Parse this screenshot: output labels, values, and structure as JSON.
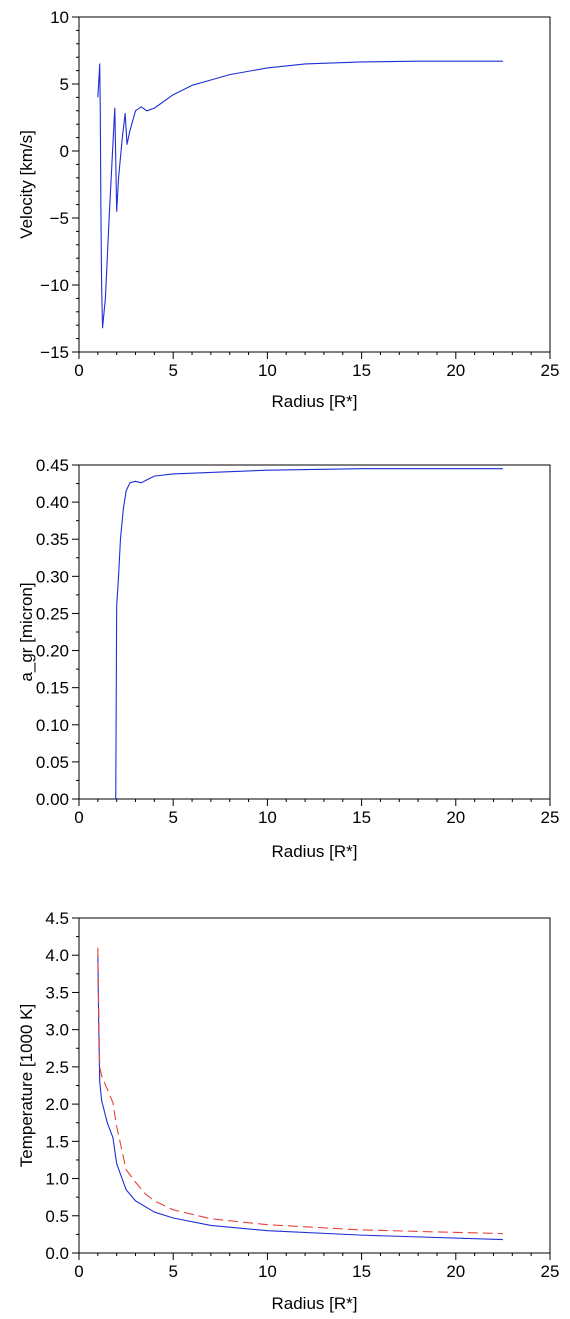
{
  "chart_data": [
    {
      "type": "line",
      "xlabel": "Radius [R*]",
      "ylabel": "Velocity [km/s]",
      "xlim": [
        0,
        25
      ],
      "ylim": [
        -15,
        10
      ],
      "xticks": [
        0,
        5,
        10,
        15,
        20,
        25
      ],
      "xtick_labels": [
        "0",
        "5",
        "10",
        "15",
        "20",
        "25"
      ],
      "yticks": [
        -15,
        -10,
        -5,
        0,
        5,
        10
      ],
      "ytick_labels": [
        "−15",
        "−10",
        "−5",
        "0",
        "5",
        "10"
      ],
      "y_minor_step": 1,
      "grid": false,
      "series": [
        {
          "color": "#1f2fd6",
          "dash": "solid",
          "points": [
            [
              1.0,
              4.0
            ],
            [
              1.05,
              5.2
            ],
            [
              1.1,
              6.5
            ],
            [
              1.13,
              3.0
            ],
            [
              1.16,
              -4.0
            ],
            [
              1.2,
              -10.0
            ],
            [
              1.25,
              -13.2
            ],
            [
              1.4,
              -11.0
            ],
            [
              1.6,
              -5.0
            ],
            [
              1.8,
              0.5
            ],
            [
              1.9,
              3.2
            ],
            [
              2.0,
              -4.5
            ],
            [
              2.1,
              -2.0
            ],
            [
              2.3,
              1.0
            ],
            [
              2.45,
              2.8
            ],
            [
              2.55,
              0.5
            ],
            [
              2.7,
              1.5
            ],
            [
              3.0,
              3.0
            ],
            [
              3.3,
              3.3
            ],
            [
              3.6,
              3.0
            ],
            [
              4.0,
              3.2
            ],
            [
              5.0,
              4.2
            ],
            [
              6.0,
              4.9
            ],
            [
              7.0,
              5.3
            ],
            [
              8.0,
              5.7
            ],
            [
              10.0,
              6.2
            ],
            [
              12.0,
              6.5
            ],
            [
              15.0,
              6.65
            ],
            [
              18.0,
              6.7
            ],
            [
              22.5,
              6.7
            ]
          ]
        }
      ]
    },
    {
      "type": "line",
      "xlabel": "Radius [R*]",
      "ylabel": "a_gr [micron]",
      "xlim": [
        0,
        25
      ],
      "ylim": [
        0,
        0.45
      ],
      "xticks": [
        0,
        5,
        10,
        15,
        20,
        25
      ],
      "xtick_labels": [
        "0",
        "5",
        "10",
        "15",
        "20",
        "25"
      ],
      "yticks": [
        0,
        0.05,
        0.1,
        0.15,
        0.2,
        0.25,
        0.3,
        0.35,
        0.4,
        0.45
      ],
      "ytick_labels": [
        "0.00",
        "0.05",
        "0.10",
        "0.15",
        "0.20",
        "0.25",
        "0.30",
        "0.35",
        "0.40",
        "0.45"
      ],
      "y_minor_step": 0.025,
      "grid": false,
      "series": [
        {
          "color": "#1f2fd6",
          "dash": "solid",
          "points": [
            [
              1.95,
              0.0
            ],
            [
              2.0,
              0.26
            ],
            [
              2.1,
              0.3
            ],
            [
              2.2,
              0.35
            ],
            [
              2.35,
              0.39
            ],
            [
              2.5,
              0.415
            ],
            [
              2.7,
              0.426
            ],
            [
              3.0,
              0.428
            ],
            [
              3.3,
              0.426
            ],
            [
              3.6,
              0.43
            ],
            [
              4.0,
              0.435
            ],
            [
              5.0,
              0.438
            ],
            [
              7.0,
              0.44
            ],
            [
              10.0,
              0.443
            ],
            [
              15.0,
              0.445
            ],
            [
              22.5,
              0.445
            ]
          ]
        }
      ]
    },
    {
      "type": "line",
      "xlabel": "Radius [R*]",
      "ylabel": "Temperature [1000 K]",
      "xlim": [
        0,
        25
      ],
      "ylim": [
        0,
        4.5
      ],
      "xticks": [
        0,
        5,
        10,
        15,
        20,
        25
      ],
      "xtick_labels": [
        "0",
        "5",
        "10",
        "15",
        "20",
        "25"
      ],
      "yticks": [
        0,
        0.5,
        1.0,
        1.5,
        2.0,
        2.5,
        3.0,
        3.5,
        4.0,
        4.5
      ],
      "ytick_labels": [
        "0.0",
        "0.5",
        "1.0",
        "1.5",
        "2.0",
        "2.5",
        "3.0",
        "3.5",
        "4.0",
        "4.5"
      ],
      "y_minor_step": 0.25,
      "grid": false,
      "series": [
        {
          "color": "#1f2fd6",
          "dash": "solid",
          "points": [
            [
              1.0,
              4.0
            ],
            [
              1.05,
              3.0
            ],
            [
              1.1,
              2.3
            ],
            [
              1.2,
              2.05
            ],
            [
              1.5,
              1.75
            ],
            [
              1.8,
              1.55
            ],
            [
              2.0,
              1.2
            ],
            [
              2.5,
              0.85
            ],
            [
              3.0,
              0.7
            ],
            [
              4.0,
              0.55
            ],
            [
              5.0,
              0.47
            ],
            [
              7.0,
              0.37
            ],
            [
              10.0,
              0.3
            ],
            [
              15.0,
              0.24
            ],
            [
              22.5,
              0.18
            ]
          ]
        },
        {
          "color": "#e8433a",
          "dash": "dashed",
          "points": [
            [
              1.0,
              4.1
            ],
            [
              1.05,
              3.2
            ],
            [
              1.1,
              2.5
            ],
            [
              1.2,
              2.38
            ],
            [
              1.5,
              2.2
            ],
            [
              1.8,
              2.02
            ],
            [
              2.0,
              1.7
            ],
            [
              2.5,
              1.12
            ],
            [
              3.0,
              0.95
            ],
            [
              3.5,
              0.8
            ],
            [
              4.0,
              0.7
            ],
            [
              5.0,
              0.58
            ],
            [
              7.0,
              0.46
            ],
            [
              10.0,
              0.38
            ],
            [
              15.0,
              0.31
            ],
            [
              22.5,
              0.26
            ]
          ]
        }
      ]
    }
  ]
}
